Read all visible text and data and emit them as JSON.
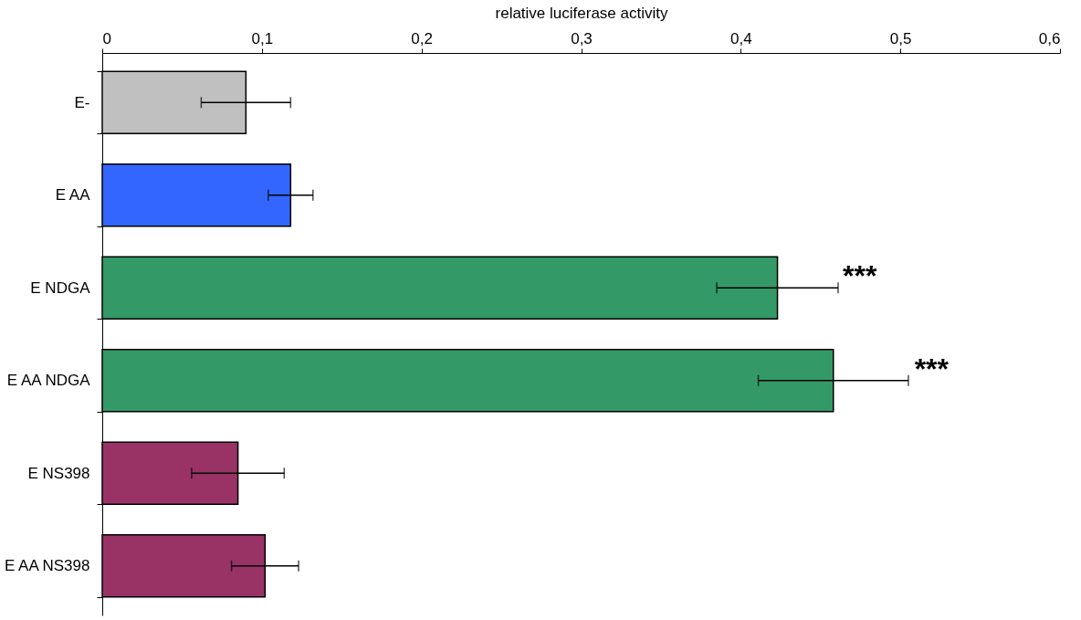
{
  "chart_data": {
    "type": "bar",
    "orientation": "horizontal",
    "xlabel": "relative luciferase activity",
    "categories": [
      "E-",
      "E AA",
      "E NDGA",
      "E AA NDGA",
      "E NS398",
      "E AA NS398"
    ],
    "values": [
      0.09,
      0.118,
      0.423,
      0.458,
      0.085,
      0.102
    ],
    "errors": [
      0.028,
      0.014,
      0.038,
      0.047,
      0.029,
      0.021
    ],
    "colors": [
      "#c0c0c0",
      "#3366ff",
      "#339966",
      "#339966",
      "#993366",
      "#993366"
    ],
    "xlim": [
      0,
      0.6
    ],
    "xticks": [
      0,
      {
        "value": 0.1,
        "label": "0,1"
      },
      {
        "value": 0.2,
        "label": "0,2"
      },
      {
        "value": 0.3,
        "label": "0,3"
      },
      {
        "value": 0.4,
        "label": "0,4"
      },
      {
        "value": 0.5,
        "label": "0,5"
      },
      {
        "value": 0.6,
        "label": "0,6"
      }
    ],
    "annotations": [
      {
        "text": "***",
        "x": 0.461,
        "y": "E NDGA"
      },
      {
        "text": "***",
        "x": 0.506,
        "y": "E AA NDGA"
      }
    ],
    "grid": false
  }
}
